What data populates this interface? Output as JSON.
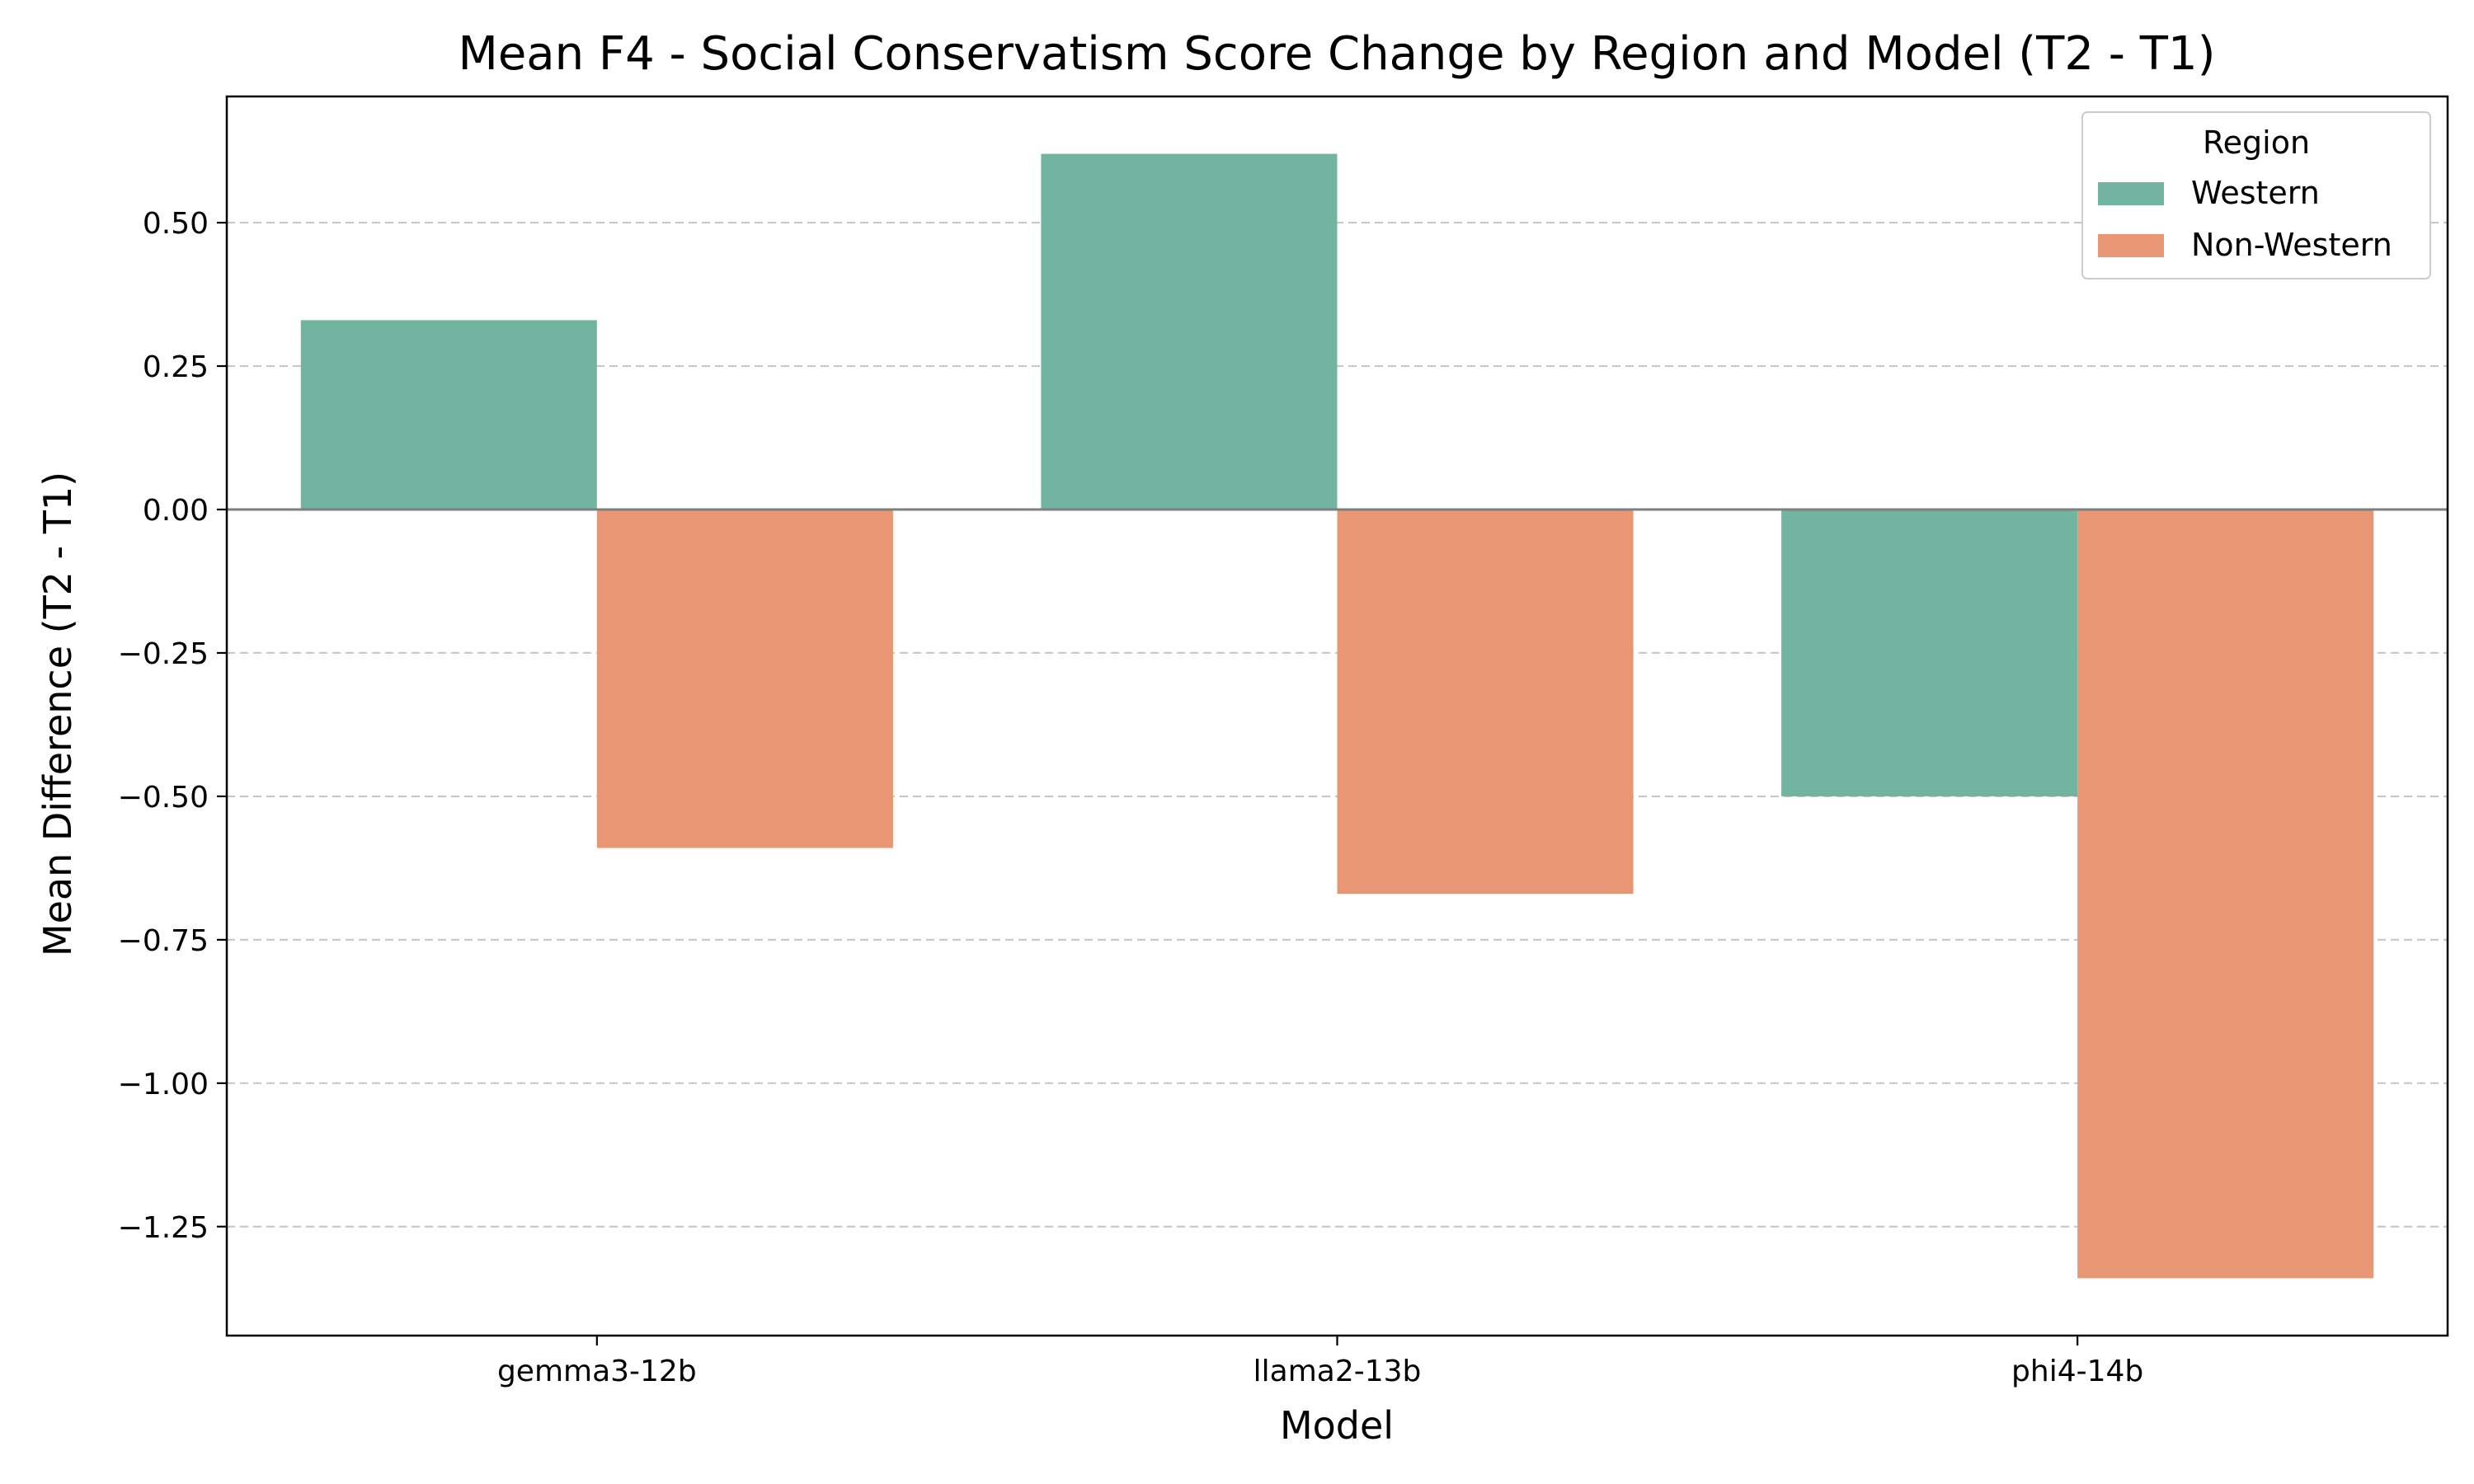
{
  "chart_data": {
    "type": "bar",
    "title": "Mean F4 - Social Conservatism Score Change by Region and Model (T2 - T1)",
    "xlabel": "Model",
    "ylabel": "Mean Difference (T2 - T1)",
    "categories": [
      "gemma3-12b",
      "llama2-13b",
      "phi4-14b"
    ],
    "series": [
      {
        "name": "Western",
        "color": "#72b49f",
        "values": [
          0.33,
          0.62,
          -0.5
        ]
      },
      {
        "name": "Non-Western",
        "color": "#e89674",
        "values": [
          -0.59,
          -0.67,
          -1.34
        ]
      }
    ],
    "ylim": [
      -1.44,
      0.72
    ],
    "yticks": [
      0.5,
      0.25,
      0.0,
      -0.25,
      -0.5,
      -0.75,
      -1.0,
      -1.25
    ],
    "ytick_labels": [
      "0.50",
      "0.25",
      "0.00",
      "−0.25",
      "−0.50",
      "−0.75",
      "−1.00",
      "−1.25"
    ],
    "grid": "y-dashed",
    "zero_line": true,
    "legend": {
      "title": "Region",
      "placement": "top-right"
    }
  }
}
